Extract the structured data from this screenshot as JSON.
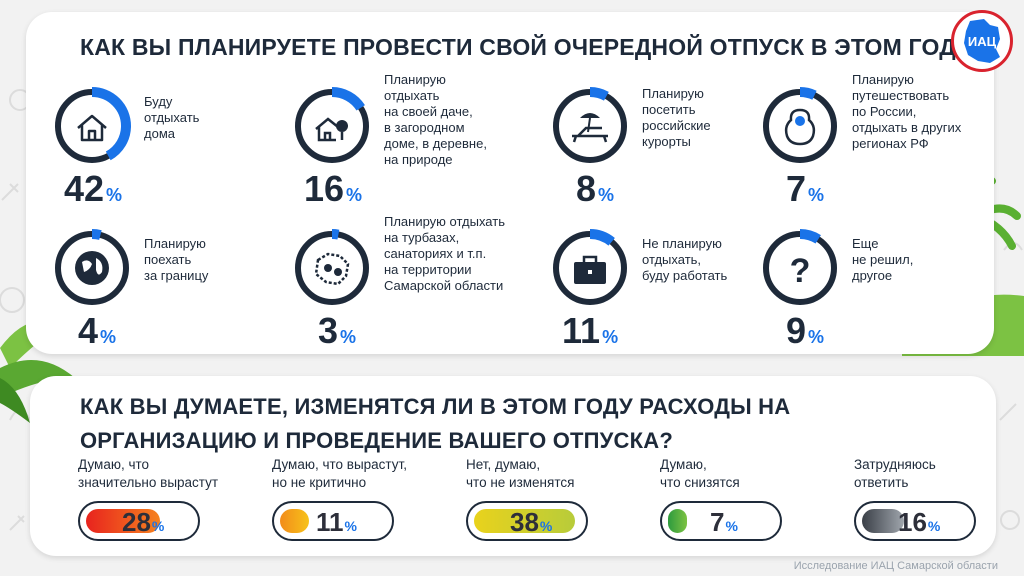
{
  "title_top": "Как Вы планируете провести свой очередной отпуск в этом году?",
  "title_bottom": "Как вы думаете, изменятся ли в этом году расходы на организацию и проведение вашего отпуска?",
  "logo_text": "ИАЦ",
  "footer": "Исследование ИАЦ Самарской области",
  "accent_color": "#1a73e8",
  "ring_color": "#1e2a3a",
  "vacation_plans": [
    {
      "icon": "house-icon",
      "label": "Буду отдыхать дома",
      "lines": [
        "Буду",
        "отдыхать",
        "дома"
      ],
      "value": 42,
      "unit": "%"
    },
    {
      "icon": "country-house-icon",
      "label": "Планирую отдыхать на своей даче, в загородном доме, в деревне, на природе",
      "lines": [
        "Планирую",
        "отдыхать",
        "на своей даче,",
        "в загородном",
        "доме, в деревне,",
        "на природе"
      ],
      "value": 16,
      "unit": "%"
    },
    {
      "icon": "sunbed-icon",
      "label": "Планирую посетить российские курорты",
      "lines": [
        "Планирую",
        "посетить",
        "российские",
        "курорты"
      ],
      "value": 8,
      "unit": "%"
    },
    {
      "icon": "matryoshka-icon",
      "label": "Планирую путешествовать по России, отдыхать в других регионах РФ",
      "lines": [
        "Планирую",
        "путешествовать",
        "по России,",
        "отдыхать в других",
        "регионах РФ"
      ],
      "value": 7,
      "unit": "%"
    },
    {
      "icon": "globe-icon",
      "label": "Планирую поехать за границу",
      "lines": [
        "Планирую",
        "поехать",
        "за границу"
      ],
      "value": 4,
      "unit": "%"
    },
    {
      "icon": "region-map-icon",
      "label": "Планирую отдыхать на турбазах, санаториях и т.п. на территории Самарской области",
      "lines": [
        "Планирую отдыхать",
        "на турбазах,",
        "санаториях и т.п.",
        "на территории",
        "Самарской области"
      ],
      "value": 3,
      "unit": "%"
    },
    {
      "icon": "briefcase-icon",
      "label": "Не планирую отдыхать, буду работать",
      "lines": [
        "Не планирую",
        "отдыхать,",
        "буду работать"
      ],
      "value": 11,
      "unit": "%"
    },
    {
      "icon": "question-icon",
      "label": "Еще не решил, другое",
      "lines": [
        "Еще",
        "не решил,",
        "другое"
      ],
      "value": 9,
      "unit": "%"
    }
  ],
  "expenses": [
    {
      "label_lines": [
        "Думаю, что",
        "значительно вырастут"
      ],
      "value": 28,
      "unit": "%",
      "color_from": "#e8231e",
      "color_to": "#f5821f"
    },
    {
      "label_lines": [
        "Думаю, что вырастут,",
        "но не критично"
      ],
      "value": 11,
      "unit": "%",
      "color_from": "#f28c1a",
      "color_to": "#f7c21a"
    },
    {
      "label_lines": [
        "Нет, думаю,",
        "что не изменятся"
      ],
      "value": 38,
      "unit": "%",
      "color_from": "#e9d21c",
      "color_to": "#b8cc3a"
    },
    {
      "label_lines": [
        "Думаю,",
        "что снизятся"
      ],
      "value": 7,
      "unit": "%",
      "color_from": "#2e9b3e",
      "color_to": "#7cc243"
    },
    {
      "label_lines": [
        "Затрудняюсь",
        "ответить"
      ],
      "value": 16,
      "unit": "%",
      "color_from": "#3a3f47",
      "color_to": "#a0a6ad"
    }
  ]
}
